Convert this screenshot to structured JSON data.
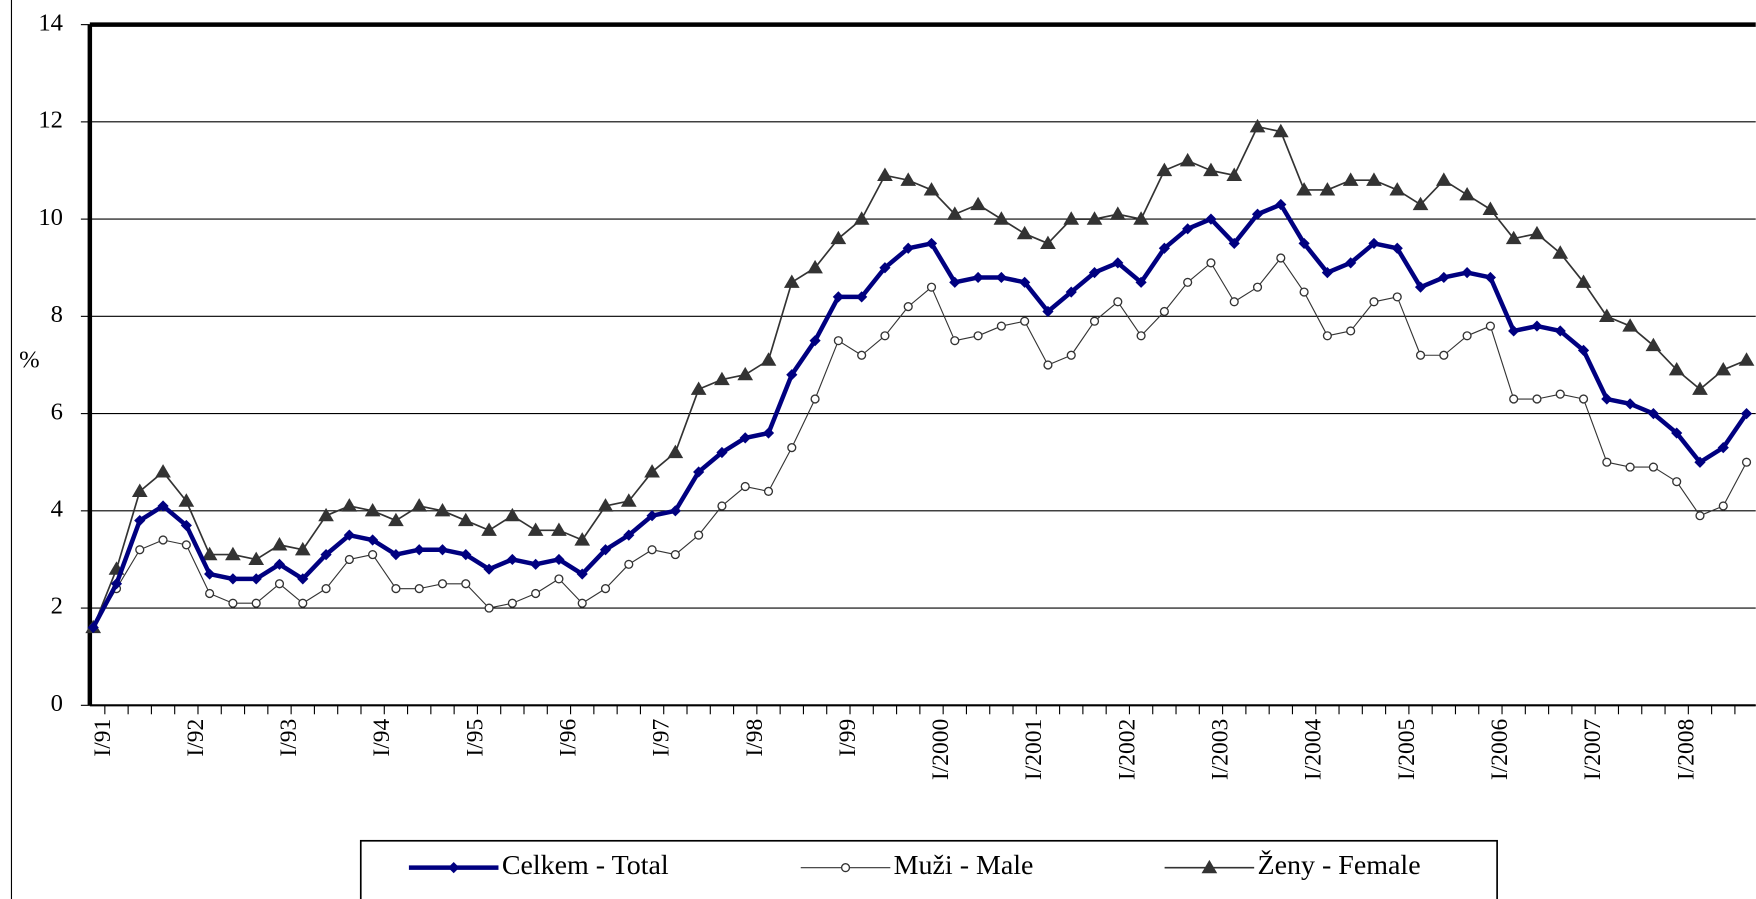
{
  "chart_data": {
    "type": "line",
    "y_label": "%",
    "categories": [
      "I/91",
      null,
      null,
      null,
      "I/92",
      null,
      null,
      null,
      "I/93",
      null,
      null,
      null,
      "I/94",
      null,
      null,
      null,
      "I/95",
      null,
      null,
      null,
      "I/96",
      null,
      null,
      null,
      "I/97",
      null,
      null,
      null,
      "I/98",
      null,
      null,
      null,
      "I/99",
      null,
      null,
      null,
      "I/2000",
      null,
      null,
      null,
      "I/2001",
      null,
      null,
      null,
      "I/2002",
      null,
      null,
      null,
      "I/2003",
      null,
      null,
      null,
      "I/2004",
      null,
      null,
      null,
      "I/2005",
      null,
      null,
      null,
      "I/2006",
      null,
      null,
      null,
      "I/2007",
      null,
      null,
      null,
      "I/2008",
      null,
      null,
      null
    ],
    "series": [
      {
        "name": "Celkem - Total",
        "color": "#000080",
        "marker": "diamond",
        "width": 4,
        "values": [
          1.6,
          2.5,
          3.8,
          4.1,
          3.7,
          2.7,
          2.6,
          2.6,
          2.9,
          2.6,
          3.1,
          3.5,
          3.4,
          3.1,
          3.2,
          3.2,
          3.1,
          2.8,
          3.0,
          2.9,
          3.0,
          2.7,
          3.2,
          3.5,
          3.9,
          4.0,
          4.8,
          5.2,
          5.5,
          5.6,
          6.8,
          7.5,
          8.4,
          8.4,
          9.0,
          9.4,
          9.5,
          8.7,
          8.8,
          8.8,
          8.7,
          8.1,
          8.5,
          8.9,
          9.1,
          8.7,
          9.4,
          9.8,
          10.0,
          9.5,
          10.1,
          10.3,
          9.5,
          8.9,
          9.1,
          9.5,
          9.4,
          8.6,
          8.8,
          8.9,
          8.8,
          7.7,
          7.8,
          7.7,
          7.3,
          6.3,
          6.2,
          6.0,
          5.6,
          5.0,
          5.3,
          6.0
        ]
      },
      {
        "name": "Muži - Male",
        "color": "#333333",
        "marker": "circle",
        "width": 1,
        "values": [
          1.6,
          2.4,
          3.2,
          3.4,
          3.3,
          2.3,
          2.1,
          2.1,
          2.5,
          2.1,
          2.4,
          3.0,
          3.1,
          2.4,
          2.4,
          2.5,
          2.5,
          2.0,
          2.1,
          2.3,
          2.6,
          2.1,
          2.4,
          2.9,
          3.2,
          3.1,
          3.5,
          4.1,
          4.5,
          4.4,
          5.3,
          6.3,
          7.5,
          7.2,
          7.6,
          8.2,
          8.6,
          7.5,
          7.6,
          7.8,
          7.9,
          7.0,
          7.2,
          7.9,
          8.3,
          7.6,
          8.1,
          8.7,
          9.1,
          8.3,
          8.6,
          9.2,
          8.5,
          7.6,
          7.7,
          8.3,
          8.4,
          7.2,
          7.2,
          7.6,
          7.8,
          6.3,
          6.3,
          6.4,
          6.3,
          5.0,
          4.9,
          4.9,
          4.6,
          3.9,
          4.1,
          5.0
        ]
      },
      {
        "name": "Ženy - Female",
        "color": "#333333",
        "marker": "triangle",
        "width": 1.5,
        "values": [
          1.6,
          2.8,
          4.4,
          4.8,
          4.2,
          3.1,
          3.1,
          3.0,
          3.3,
          3.2,
          3.9,
          4.1,
          4.0,
          3.8,
          4.1,
          4.0,
          3.8,
          3.6,
          3.9,
          3.6,
          3.6,
          3.4,
          4.1,
          4.2,
          4.8,
          5.2,
          6.5,
          6.7,
          6.8,
          7.1,
          8.7,
          9.0,
          9.6,
          10.0,
          10.9,
          10.8,
          10.6,
          10.1,
          10.3,
          10.0,
          9.7,
          9.5,
          10.0,
          10.0,
          10.1,
          10.0,
          11.0,
          11.2,
          11.0,
          10.9,
          11.9,
          11.8,
          10.6,
          10.6,
          10.8,
          10.8,
          10.6,
          10.3,
          10.8,
          10.5,
          10.2,
          9.6,
          9.7,
          9.3,
          8.7,
          8.0,
          7.8,
          7.4,
          6.9,
          6.5,
          6.9,
          7.1
        ]
      }
    ],
    "ylim": [
      0,
      14
    ],
    "yticks": [
      0,
      2,
      4,
      6,
      8,
      10,
      12,
      14
    ],
    "grid": true,
    "legend": "bottom"
  }
}
